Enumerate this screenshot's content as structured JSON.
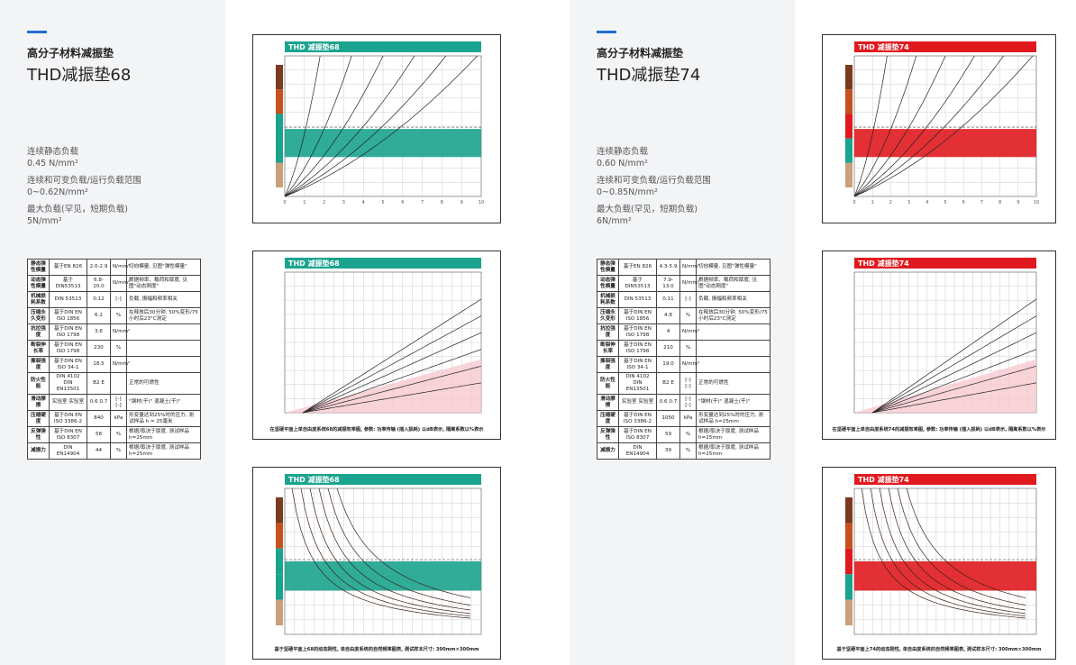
{
  "panels": [
    {
      "heading": "高分子材料减振垫",
      "title": "THD减振垫68",
      "theme": "#1aa38e",
      "specs": [
        {
          "label": "连续静态负载",
          "value": "0.45 N/mm²"
        },
        {
          "label": "连续和可变负载/运行负载范围",
          "value": "0~0.62N/mm²"
        },
        {
          "label": "最大负载(罕见，短期负载)",
          "value": "5N/mm²"
        }
      ],
      "table": [
        {
          "property": "静态弹性模量",
          "standard": "基于EN 826",
          "value": "2.0-2.9",
          "unit": "N/mm²",
          "note": "切向模量, 见图\"弹性模量\""
        },
        {
          "property": "动态弹性模量",
          "standard": "基于DIN53513",
          "value": "6.8-10.0",
          "unit": "N/mm²",
          "note": "根据频率、载荷和厚度, 见图\"动态刚度\""
        },
        {
          "property": "机械损耗系数",
          "standard": "DIN 53513",
          "value": "0.12",
          "unit": "[-]",
          "note": "负载, 振幅和频率相关"
        },
        {
          "property": "压缩永久变形",
          "standard": "基于DIN EN ISO 1856",
          "value": "6.2",
          "unit": "%",
          "note": "在释放后30分钟, 50%变形/75小时后23°C测定"
        },
        {
          "property": "抗拉强度",
          "standard": "基于DIN EN ISO 1798",
          "value": "3.6",
          "unit": "N/mm²"
        },
        {
          "property": "断裂伸长率",
          "standard": "基于DIN EN ISO 1798",
          "value": "230",
          "unit": "%"
        },
        {
          "property": "撕裂强度",
          "standard": "基于DIN EN ISO 34-1",
          "value": "18.5",
          "unit": "N/mm²"
        },
        {
          "property": "防火性能",
          "standard": "DIN 4102 DIN EN13501",
          "value": "B2 E",
          "note": "正常的可燃性"
        },
        {
          "property": "滑动摩擦",
          "standard": "实验室 实验室",
          "value": "0.6 0.7",
          "unit": "[-] [-]",
          "note": "\"钢材(干)\" 混凝土(干)\""
        },
        {
          "property": "压缩硬度",
          "standard": "基于DIN EN ISO 3386-2",
          "value": "840",
          "unit": "kPa",
          "note": "形变量达到25%时的压力, 测试样品 h = 25毫米"
        },
        {
          "property": "反弹弹性",
          "standard": "基于DIN EN ISO 8307",
          "value": "58",
          "unit": "%",
          "note": "根据/取决于厚度, 测试样品 h=25mm"
        },
        {
          "property": "减振力",
          "standard": "DIN EN14904",
          "value": "44",
          "unit": "%",
          "note": "根据/取决于厚度, 测试样品 h=25mm"
        }
      ],
      "charts": [
        {
          "title": "THD 减振垫68",
          "xticks": [
            0,
            1,
            2,
            3,
            4,
            5,
            6,
            7,
            8,
            9,
            10
          ]
        },
        {
          "title": "THD 减振垫68",
          "caption": "在坚硬平面上单自由度系统68的减振效率图, 参数: 功率传输 (插入损耗) 以dB表示, 隔离系数以%表示"
        },
        {
          "title": "THD 减振垫68",
          "caption": "基于坚硬平面上68的动态刚性, 单自由度系统的自然频率图表, 测试样本尺寸: 300mm×300mm"
        }
      ]
    },
    {
      "heading": "高分子材料减振垫",
      "title": "THD减振垫74",
      "theme": "#e0191f",
      "specs": [
        {
          "label": "连续静态负载",
          "value": "0.60 N/mm²"
        },
        {
          "label": "连续和可变负载/运行负载范围",
          "value": "0~0.85N/mm²"
        },
        {
          "label": "最大负载(罕见，短期负载)",
          "value": "6N/mm²"
        }
      ],
      "table": [
        {
          "property": "静态弹性模量",
          "standard": "基于EN 826",
          "value": "4.3-5.9",
          "unit": "N/mm²",
          "note": "切向模量, 见图\"弹性模量\""
        },
        {
          "property": "动态弹性模量",
          "standard": "基于DIN53513",
          "value": "7.9-13.0",
          "unit": "N/mm²",
          "note": "根据频率、载荷和厚度, 见图\"动态刚度\""
        },
        {
          "property": "机械损耗系数",
          "standard": "DIN 53513",
          "value": "0.11",
          "unit": "[-]",
          "note": "负载, 振幅和频率相关"
        },
        {
          "property": "压缩永久变形",
          "standard": "基于DIN EN ISO 1856",
          "value": "4.8",
          "unit": "%",
          "note": "在释放后30分钟, 50%变形/75小时后23°C测定"
        },
        {
          "property": "抗拉强度",
          "standard": "基于DIN EN ISO 1798",
          "value": "4",
          "unit": "N/mm²"
        },
        {
          "property": "断裂伸长率",
          "standard": "基于DIN EN ISO 1798",
          "value": "210",
          "unit": "%"
        },
        {
          "property": "撕裂强度",
          "standard": "基于DIN EN ISO 34-1",
          "value": "19.0",
          "unit": "N/mm²"
        },
        {
          "property": "防火性能",
          "standard": "DIN 4102 DIN EN13501",
          "value": "B2 E",
          "unit": "[-] [-]",
          "note": "正常的可燃性"
        },
        {
          "property": "滑动摩擦",
          "standard": "实验室 实验室",
          "value": "0.6 0.7",
          "unit": "[-] [-]",
          "note": "\"钢材(干)\" 混凝土(干)\""
        },
        {
          "property": "压缩硬度",
          "standard": "基于DIN EN ISO 3386-2",
          "value": "1050",
          "unit": "kPa",
          "note": "形变量达到25%时的压力, 测试样品 h=25mm"
        },
        {
          "property": "反弹弹性",
          "standard": "基于DIN EN ISO 8307",
          "value": "59",
          "unit": "%",
          "note": "根据/取决于厚度, 测试样品 h=25mm"
        },
        {
          "property": "减振力",
          "standard": "DIN EN14904",
          "value": "39",
          "unit": "%",
          "note": "根据/取决于厚度, 测试样品 h=25mm"
        }
      ],
      "charts": [
        {
          "title": "THD 减振垫74",
          "xticks": [
            0,
            1,
            2,
            3,
            4,
            5,
            6,
            7,
            8,
            9,
            10
          ]
        },
        {
          "title": "THD 减振垫74",
          "caption": "在坚硬平面上单自由度系统74的减振效率图, 参数: 功率传输 (插入损耗) 以dB表示, 隔离系数以%表示"
        },
        {
          "title": "THD 减振垫74",
          "caption": "基于坚硬平面上74的动态刚性, 单自由度系统的自然频率图表, 测试样本尺寸: 300mm×300mm"
        }
      ]
    }
  ]
}
